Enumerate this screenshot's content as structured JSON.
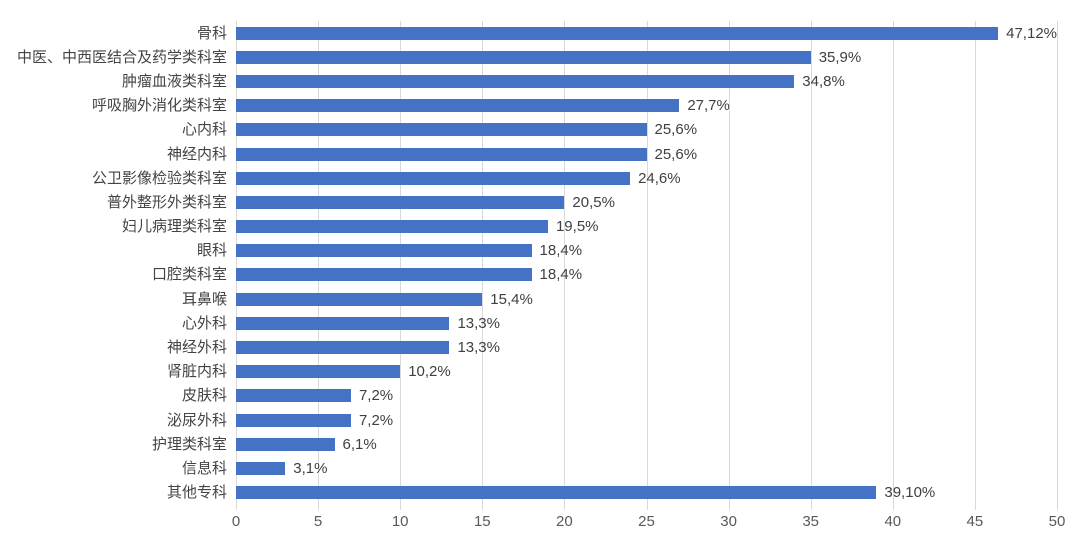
{
  "chart_data": {
    "type": "bar",
    "orientation": "horizontal",
    "title": "",
    "xlabel": "",
    "ylabel": "",
    "xlim": [
      0,
      50
    ],
    "x_ticks": [
      0,
      5,
      10,
      15,
      20,
      25,
      30,
      35,
      40,
      45,
      50
    ],
    "grid": true,
    "legend": "none",
    "categories": [
      "骨科",
      "中医、中西医结合及药学类科室",
      "肿瘤血液类科室",
      "呼吸胸外消化类科室",
      "心内科",
      "神经内科",
      "公卫影像检验类科室",
      "普外整形外类科室",
      "妇儿病理类科室",
      "眼科",
      "口腔类科室",
      "耳鼻喉",
      "心外科",
      "神经外科",
      "肾脏内科",
      "皮肤科",
      "泌尿外科",
      "护理类科室",
      "信息科",
      "其他专科"
    ],
    "values": [
      47,
      35,
      34,
      27,
      25,
      25,
      24,
      20,
      19,
      18,
      18,
      15,
      13,
      13,
      10,
      7,
      7,
      6,
      3,
      39
    ],
    "data_labels": [
      "47,12%",
      "35,9%",
      "34,8%",
      "27,7%",
      "25,6%",
      "25,6%",
      "24,6%",
      "20,5%",
      "19,5%",
      "18,4%",
      "18,4%",
      "15,4%",
      "13,3%",
      "13,3%",
      "10,2%",
      "7,2%",
      "7,2%",
      "6,1%",
      "3,1%",
      "39,10%"
    ],
    "colors": {
      "bar": "#4472c4",
      "gridline": "#d9d9d9",
      "axis_tick_label": "#595959",
      "data_label": "#404040",
      "category_label": "#444444",
      "background": "#ffffff"
    }
  }
}
